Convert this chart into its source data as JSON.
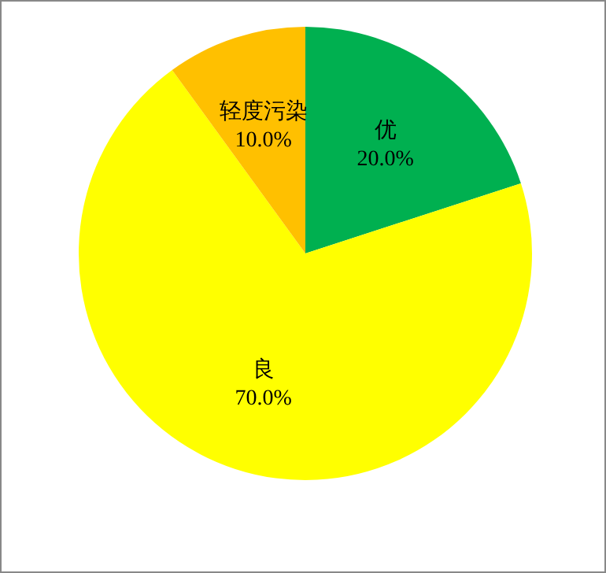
{
  "chart_data": {
    "type": "pie",
    "categories": [
      "优",
      "良",
      "轻度污染"
    ],
    "values": [
      20,
      70,
      10
    ],
    "colors": [
      "#00b050",
      "#ffff00",
      "#ffc000"
    ],
    "value_labels": [
      "20.0%",
      "70.0%",
      "10.0%"
    ]
  }
}
